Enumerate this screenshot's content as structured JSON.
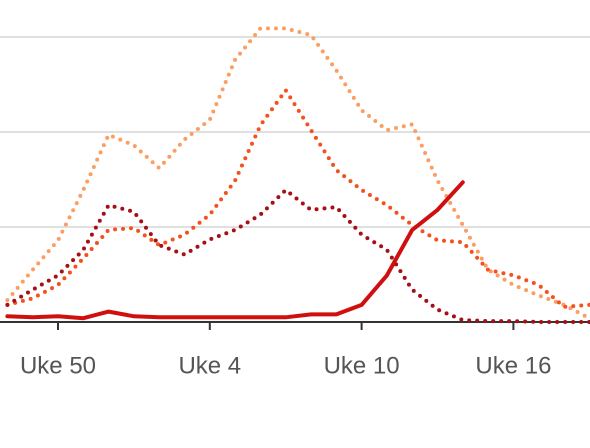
{
  "chart_data": {
    "type": "line",
    "categories": [
      null,
      null,
      "Uke 50",
      null,
      null,
      null,
      null,
      null,
      "Uke 4",
      null,
      null,
      null,
      null,
      null,
      "Uke 10",
      null,
      null,
      null,
      null,
      null,
      "Uke 16",
      null,
      null,
      null
    ],
    "series": [
      {
        "color": "#fc9e63",
        "style": "dotted",
        "values": [
          0.23,
          0.55,
          0.86,
          1.39,
          1.97,
          1.86,
          1.62,
          1.92,
          2.13,
          2.76,
          3.09,
          3.09,
          3.02,
          2.65,
          2.23,
          2.02,
          2.08,
          1.49,
          1.02,
          0.55,
          0.39,
          0.28,
          0.18,
          0.04
        ]
      },
      {
        "color": "#f4511e",
        "style": "dotted",
        "values": [
          0.18,
          0.25,
          0.39,
          0.67,
          0.97,
          0.99,
          0.81,
          0.92,
          1.13,
          1.49,
          2.07,
          2.44,
          2.02,
          1.6,
          1.39,
          1.23,
          1.02,
          0.86,
          0.84,
          0.55,
          0.49,
          0.39,
          0.16,
          0.18
        ]
      },
      {
        "color": "#a50f15",
        "style": "dotted",
        "values": [
          0.18,
          0.34,
          0.49,
          0.76,
          1.23,
          1.16,
          0.81,
          0.71,
          0.87,
          0.97,
          1.13,
          1.39,
          1.18,
          1.21,
          0.92,
          0.76,
          0.34,
          0.13,
          0.02,
          0.01,
          0.01,
          0,
          0,
          0
        ]
      },
      {
        "color": "#d0100f",
        "style": "solid",
        "values": [
          0.06,
          0.05,
          0.06,
          0.04,
          0.11,
          0.06,
          0.05,
          0.05,
          0.05,
          0.05,
          0.05,
          0.05,
          0.08,
          0.08,
          0.18,
          0.49,
          0.97,
          1.18,
          1.47,
          null,
          null,
          null,
          null,
          null
        ]
      }
    ],
    "ylim": [
      0,
      3.2
    ],
    "yticks": [
      0,
      1,
      2,
      3
    ],
    "grid": true
  }
}
